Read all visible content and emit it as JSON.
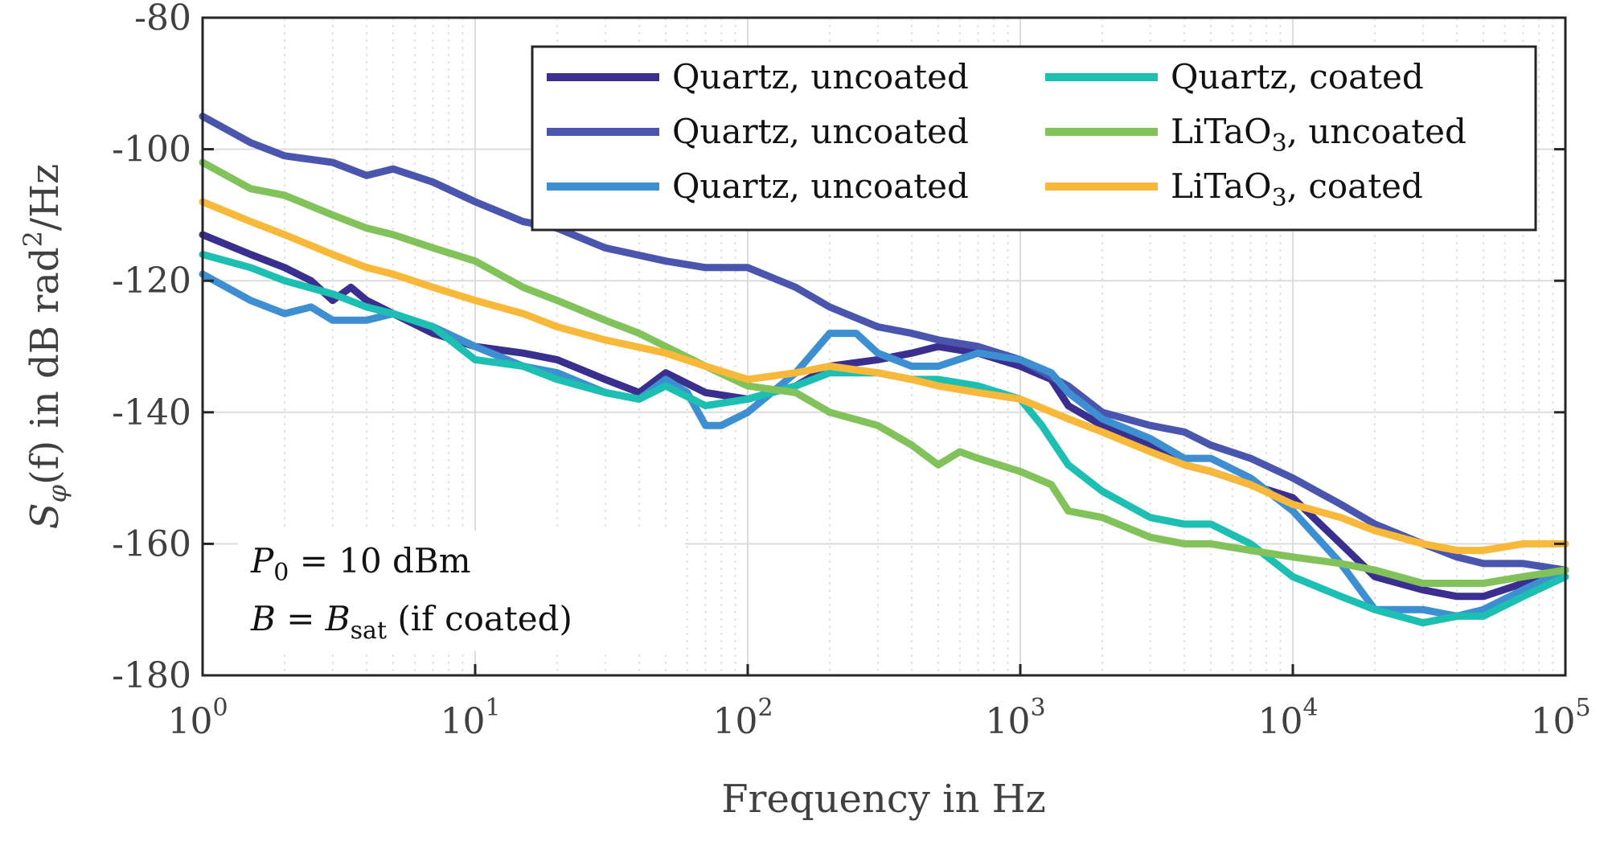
{
  "chart_data": {
    "type": "line",
    "title": "",
    "xlabel": "Frequency in Hz",
    "ylabel": "S_φ(f) in dB rad²/Hz",
    "ylabel_parts": {
      "main": "S",
      "sub": "φ",
      "rest": "(f) in dB rad",
      "sup": "2",
      "end": "/Hz"
    },
    "xscale": "log",
    "xlim": [
      1,
      100000
    ],
    "ylim": [
      -180,
      -80
    ],
    "grid": true,
    "legend_position": "top-right",
    "x_ticks": [
      {
        "base": "10",
        "exp": "0",
        "value": 1
      },
      {
        "base": "10",
        "exp": "1",
        "value": 10
      },
      {
        "base": "10",
        "exp": "2",
        "value": 100
      },
      {
        "base": "10",
        "exp": "3",
        "value": 1000
      },
      {
        "base": "10",
        "exp": "4",
        "value": 10000
      },
      {
        "base": "10",
        "exp": "5",
        "value": 100000
      }
    ],
    "y_ticks": [
      "-80",
      "-100",
      "-120",
      "-140",
      "-160",
      "-180"
    ],
    "series": [
      {
        "name": "Quartz, uncoated",
        "color": "#3a2f8f",
        "x": [
          1,
          1.5,
          2,
          2.5,
          3,
          3.5,
          4,
          5,
          7,
          10,
          15,
          20,
          30,
          40,
          50,
          70,
          100,
          150,
          200,
          300,
          400,
          500,
          700,
          1000,
          1300,
          1500,
          2000,
          3000,
          4000,
          5000,
          7000,
          10000,
          15000,
          20000,
          30000,
          40000,
          50000,
          70000,
          100000
        ],
        "values": [
          -113,
          -116,
          -118,
          -120,
          -123,
          -121,
          -123,
          -125,
          -128,
          -130,
          -131,
          -132,
          -135,
          -137,
          -134,
          -137,
          -138,
          -136,
          -133,
          -132,
          -131,
          -130,
          -131,
          -133,
          -135,
          -139,
          -142,
          -145,
          -148,
          -149,
          -151,
          -153,
          -160,
          -165,
          -167,
          -168,
          -168,
          -166,
          -164
        ]
      },
      {
        "name": "Quartz, uncoated",
        "color": "#4a56ae",
        "x": [
          1,
          1.5,
          2,
          3,
          4,
          5,
          7,
          10,
          15,
          20,
          30,
          50,
          70,
          100,
          150,
          200,
          300,
          400,
          500,
          700,
          1000,
          1500,
          2000,
          3000,
          4000,
          5000,
          7000,
          10000,
          15000,
          20000,
          30000,
          40000,
          50000,
          70000,
          100000
        ],
        "values": [
          -95,
          -99,
          -101,
          -102,
          -104,
          -103,
          -105,
          -108,
          -111,
          -112,
          -115,
          -117,
          -118,
          -118,
          -121,
          -124,
          -127,
          -128,
          -129,
          -130,
          -132,
          -136,
          -140,
          -142,
          -143,
          -145,
          -147,
          -150,
          -154,
          -157,
          -160,
          -162,
          -163,
          -163,
          -164
        ]
      },
      {
        "name": "Quartz, uncoated",
        "color": "#3d8fd1",
        "x": [
          1,
          1.5,
          2,
          2.5,
          3,
          4,
          5,
          7,
          10,
          15,
          20,
          30,
          40,
          50,
          60,
          70,
          80,
          100,
          150,
          200,
          250,
          300,
          400,
          500,
          700,
          1000,
          1300,
          1500,
          2000,
          3000,
          4000,
          5000,
          7000,
          10000,
          15000,
          20000,
          30000,
          40000,
          50000,
          70000,
          100000
        ],
        "values": [
          -119,
          -123,
          -125,
          -124,
          -126,
          -126,
          -125,
          -127,
          -130,
          -133,
          -134,
          -137,
          -138,
          -135,
          -137,
          -142,
          -142,
          -140,
          -134,
          -128,
          -128,
          -131,
          -133,
          -133,
          -131,
          -132,
          -134,
          -137,
          -141,
          -144,
          -147,
          -147,
          -150,
          -155,
          -163,
          -170,
          -170,
          -171,
          -170,
          -167,
          -164
        ]
      },
      {
        "name": "Quartz, coated",
        "color": "#1ebfb3",
        "x": [
          1,
          1.5,
          2,
          3,
          4,
          5,
          7,
          10,
          15,
          20,
          30,
          40,
          50,
          70,
          100,
          150,
          200,
          300,
          400,
          500,
          700,
          1000,
          1200,
          1500,
          2000,
          3000,
          4000,
          5000,
          7000,
          10000,
          15000,
          20000,
          30000,
          40000,
          50000,
          70000,
          100000
        ],
        "values": [
          -116,
          -118,
          -120,
          -122,
          -124,
          -125,
          -127,
          -132,
          -133,
          -135,
          -137,
          -138,
          -136,
          -139,
          -138,
          -136,
          -134,
          -134,
          -135,
          -135,
          -136,
          -138,
          -142,
          -148,
          -152,
          -156,
          -157,
          -157,
          -160,
          -165,
          -168,
          -170,
          -172,
          -171,
          -171,
          -168,
          -165
        ]
      },
      {
        "name": "LiTaO₃, uncoated",
        "color": "#82c25a",
        "x": [
          1,
          1.5,
          2,
          3,
          4,
          5,
          7,
          10,
          15,
          20,
          30,
          40,
          50,
          70,
          100,
          150,
          200,
          300,
          400,
          500,
          600,
          700,
          1000,
          1300,
          1500,
          2000,
          3000,
          4000,
          5000,
          7000,
          10000,
          15000,
          20000,
          30000,
          40000,
          50000,
          70000,
          100000
        ],
        "values": [
          -102,
          -106,
          -107,
          -110,
          -112,
          -113,
          -115,
          -117,
          -121,
          -123,
          -126,
          -128,
          -130,
          -133,
          -136,
          -137,
          -140,
          -142,
          -145,
          -148,
          -146,
          -147,
          -149,
          -151,
          -155,
          -156,
          -159,
          -160,
          -160,
          -161,
          -162,
          -163,
          -164,
          -166,
          -166,
          -166,
          -165,
          -164
        ]
      },
      {
        "name": "LiTaO₃, coated",
        "color": "#f8b93b",
        "x": [
          1,
          1.5,
          2,
          3,
          4,
          5,
          7,
          10,
          15,
          20,
          30,
          50,
          70,
          100,
          150,
          200,
          300,
          400,
          500,
          700,
          1000,
          1500,
          2000,
          3000,
          4000,
          5000,
          7000,
          10000,
          15000,
          20000,
          30000,
          40000,
          50000,
          70000,
          100000
        ],
        "values": [
          -108,
          -111,
          -113,
          -116,
          -118,
          -119,
          -121,
          -123,
          -125,
          -127,
          -129,
          -131,
          -133,
          -135,
          -134,
          -133,
          -134,
          -135,
          -136,
          -137,
          -138,
          -141,
          -143,
          -146,
          -148,
          -149,
          -151,
          -154,
          -156,
          -158,
          -160,
          -161,
          -161,
          -160,
          -160
        ]
      }
    ],
    "annotations": {
      "line1": {
        "var": "P",
        "sub": "0",
        "text": " = 10 dBm"
      },
      "line2": {
        "var": "B",
        "text": " = ",
        "var2": "B",
        "sub": "sat",
        "tail": " (if coated)"
      }
    }
  }
}
